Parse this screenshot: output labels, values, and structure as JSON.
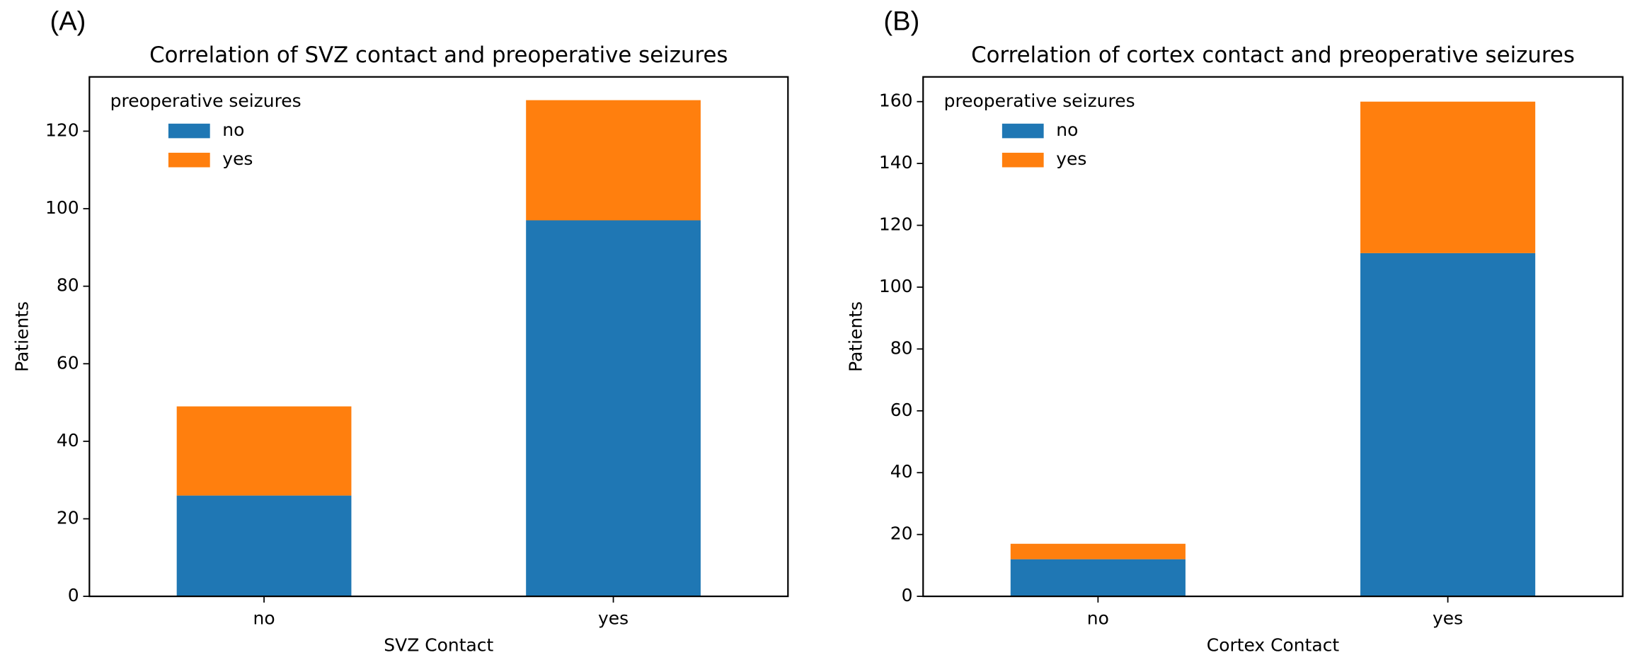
{
  "chart_data": [
    {
      "type": "stacked_bar",
      "panel_label": "(A)",
      "title": "Correlation of SVZ contact and preoperative seizures",
      "xlabel": "SVZ Contact",
      "ylabel": "Patients",
      "categories": [
        "no",
        "yes"
      ],
      "legend_title": "preoperative seizures",
      "legend": "upper left",
      "series": [
        {
          "name": "no",
          "color": "#1f77b4",
          "values": [
            26,
            97
          ]
        },
        {
          "name": "yes",
          "color": "#ff7f0e",
          "values": [
            23,
            31
          ]
        }
      ],
      "ylim": [
        0,
        134
      ],
      "yticks": [
        0,
        20,
        40,
        60,
        80,
        100,
        120
      ]
    },
    {
      "type": "stacked_bar",
      "panel_label": "(B)",
      "title": "Correlation of cortex contact and preoperative seizures",
      "xlabel": "Cortex Contact",
      "ylabel": "Patients",
      "categories": [
        "no",
        "yes"
      ],
      "legend_title": "preoperative seizures",
      "legend": "upper left",
      "series": [
        {
          "name": "no",
          "color": "#1f77b4",
          "values": [
            12,
            111
          ]
        },
        {
          "name": "yes",
          "color": "#ff7f0e",
          "values": [
            5,
            49
          ]
        }
      ],
      "ylim": [
        0,
        168
      ],
      "yticks": [
        0,
        20,
        40,
        60,
        80,
        100,
        120,
        140,
        160
      ]
    }
  ]
}
